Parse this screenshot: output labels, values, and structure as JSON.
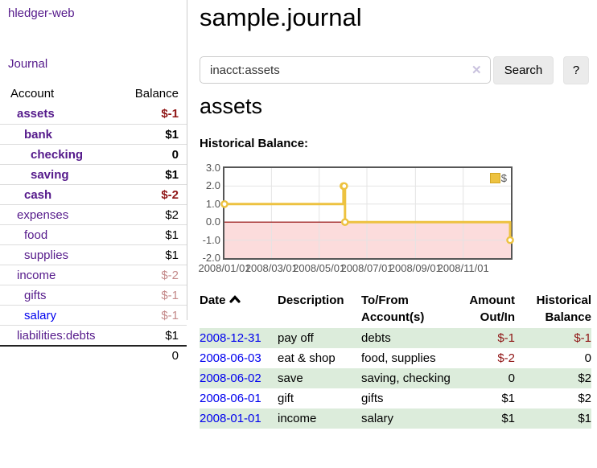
{
  "app": {
    "title": "hledger-web",
    "nav_journal": "Journal"
  },
  "sidebar": {
    "accounts_header": {
      "account": "Account",
      "balance": "Balance"
    },
    "accounts": [
      {
        "name": "assets",
        "depth": 1,
        "bold": true,
        "link": "visited",
        "balance": "$-1",
        "balance_class": "neg",
        "balance_bold": true
      },
      {
        "name": "bank",
        "depth": 2,
        "bold": true,
        "link": "visited",
        "balance": "$1",
        "balance_class": "pos",
        "balance_bold": true
      },
      {
        "name": "checking",
        "depth": 3,
        "bold": true,
        "link": "visited",
        "balance": "0",
        "balance_class": "pos",
        "balance_bold": true
      },
      {
        "name": "saving",
        "depth": 3,
        "bold": true,
        "link": "visited",
        "balance": "$1",
        "balance_class": "pos",
        "balance_bold": true
      },
      {
        "name": "cash",
        "depth": 2,
        "bold": true,
        "link": "visited",
        "balance": "$-2",
        "balance_class": "neg",
        "balance_bold": true
      },
      {
        "name": "expenses",
        "depth": 1,
        "bold": false,
        "link": "visited",
        "balance": "$2",
        "balance_class": "pos",
        "balance_bold": false
      },
      {
        "name": "food",
        "depth": 2,
        "bold": false,
        "link": "visited",
        "balance": "$1",
        "balance_class": "pos",
        "balance_bold": false
      },
      {
        "name": "supplies",
        "depth": 2,
        "bold": false,
        "link": "visited",
        "balance": "$1",
        "balance_class": "pos",
        "balance_bold": false
      },
      {
        "name": "income",
        "depth": 1,
        "bold": false,
        "link": "visited",
        "balance": "$-2",
        "balance_class": "faded",
        "balance_bold": false
      },
      {
        "name": "gifts",
        "depth": 2,
        "bold": false,
        "link": "visited",
        "balance": "$-1",
        "balance_class": "faded",
        "balance_bold": false
      },
      {
        "name": "salary",
        "depth": 2,
        "bold": false,
        "link": "new",
        "balance": "$-1",
        "balance_class": "faded",
        "balance_bold": false
      },
      {
        "name": "liabilities:debts",
        "depth": 1,
        "bold": false,
        "link": "visited",
        "balance": "$1",
        "balance_class": "pos",
        "balance_bold": false
      }
    ],
    "total": "0"
  },
  "header": {
    "title": "sample.journal"
  },
  "search": {
    "value": "inacct:assets",
    "clear_icon": "✕",
    "search_label": "Search",
    "help_label": "?"
  },
  "account_page": {
    "title": "assets",
    "chart_label": "Historical Balance:"
  },
  "chart_data": {
    "type": "line",
    "title": "Historical Balance",
    "series": [
      {
        "name": "$",
        "color": "#edc240",
        "step": true,
        "points": [
          [
            "2008-01-01",
            1
          ],
          [
            "2008-06-01",
            2
          ],
          [
            "2008-06-02",
            2
          ],
          [
            "2008-06-03",
            0
          ],
          [
            "2008-12-31",
            -1
          ]
        ]
      }
    ],
    "xlim": [
      "2008-01-01",
      "2009-01-01"
    ],
    "ylim": [
      -2,
      3
    ],
    "x_ticks": [
      "2008/01/01",
      "2008/03/01",
      "2008/05/01",
      "2008/07/01",
      "2008/09/01",
      "2008/11/01"
    ],
    "y_ticks": [
      "3.0",
      "2.0",
      "1.0",
      "0.0",
      "-1.0",
      "-2.0"
    ],
    "grid": true,
    "negative_region_color": "#fcdcdc",
    "zero_line_color": "#8b0000",
    "legend": {
      "label": "$",
      "position": "top-right"
    }
  },
  "register": {
    "columns": [
      {
        "line1": "Date",
        "line2": "",
        "align": "left",
        "sortable": true
      },
      {
        "line1": "Description",
        "line2": "",
        "align": "left"
      },
      {
        "line1": "To/From",
        "line2": "Account(s)",
        "align": "left"
      },
      {
        "line1": "Amount",
        "line2": "Out/In",
        "align": "right"
      },
      {
        "line1": "Historical",
        "line2": "Balance",
        "align": "right"
      }
    ],
    "rows": [
      {
        "date": "2008-12-31",
        "description": "pay off",
        "accounts": "debts",
        "amount": "$-1",
        "amount_class": "neg",
        "balance": "$-1",
        "balance_class": "neg"
      },
      {
        "date": "2008-06-03",
        "description": "eat & shop",
        "accounts": "food, supplies",
        "amount": "$-2",
        "amount_class": "neg",
        "balance": "0",
        "balance_class": "pos"
      },
      {
        "date": "2008-06-02",
        "description": "save",
        "accounts": "saving, checking",
        "amount": "0",
        "amount_class": "pos",
        "balance": "$2",
        "balance_class": "pos"
      },
      {
        "date": "2008-06-01",
        "description": "gift",
        "accounts": "gifts",
        "amount": "$1",
        "amount_class": "pos",
        "balance": "$2",
        "balance_class": "pos"
      },
      {
        "date": "2008-01-01",
        "description": "income",
        "accounts": "salary",
        "amount": "$1",
        "amount_class": "pos",
        "balance": "$1",
        "balance_class": "pos"
      }
    ]
  }
}
